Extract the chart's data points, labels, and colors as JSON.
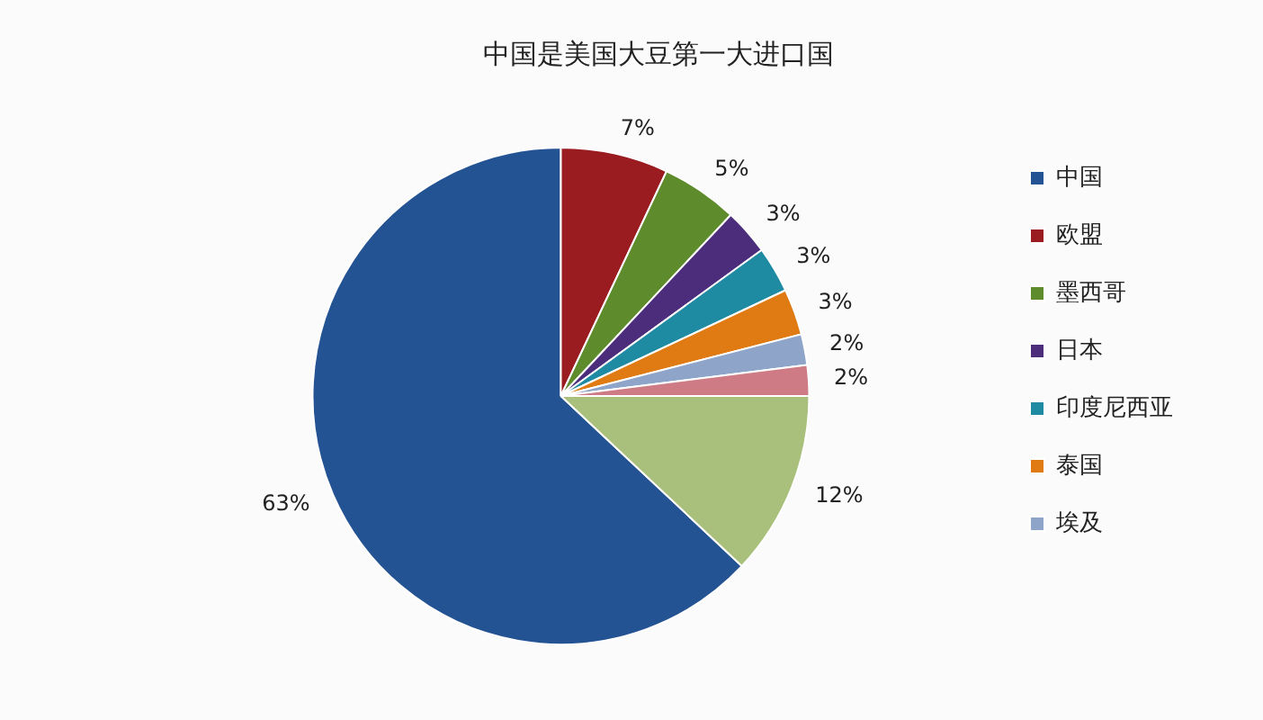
{
  "chart_data": {
    "type": "pie",
    "title": "中国是美国大豆第一大进口国",
    "categories": [
      "中国",
      "欧盟",
      "墨西哥",
      "日本",
      "印度尼西亚",
      "泰国",
      "埃及",
      null,
      null
    ],
    "values": [
      63,
      7,
      5,
      3,
      3,
      3,
      2,
      2,
      12
    ],
    "value_labels": [
      "63%",
      "7%",
      "5%",
      "3%",
      "3%",
      "3%",
      "2%",
      "2%",
      "12%"
    ],
    "colors": [
      "#245394",
      "#9a1c20",
      "#5e8b2c",
      "#4c2d7c",
      "#1f8ba2",
      "#e07a12",
      "#8ea4c9",
      "#cf7b86",
      "#a9c07c"
    ],
    "legend": "right"
  }
}
